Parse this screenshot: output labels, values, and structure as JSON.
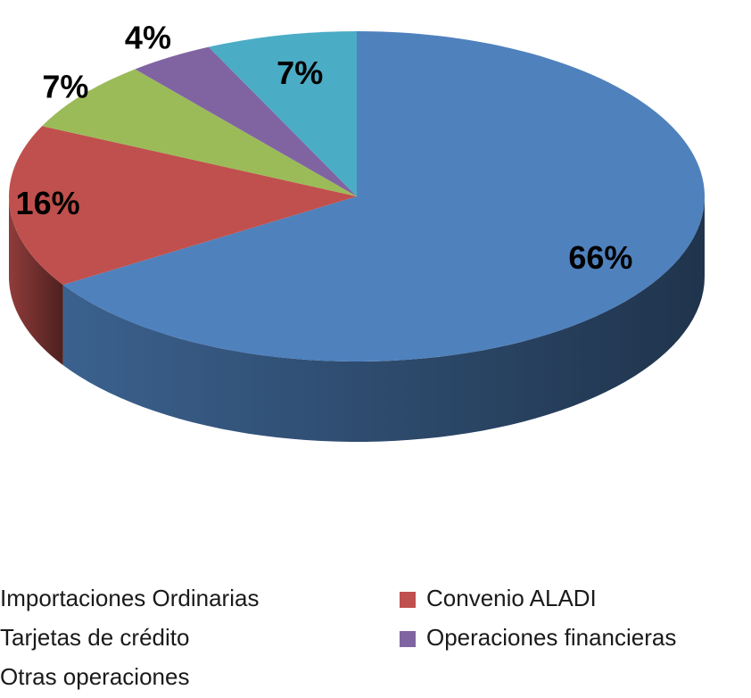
{
  "chart_data": {
    "type": "pie",
    "categories": [
      "Importaciones Ordinarias",
      "Convenio ALADI",
      "Tarjetas de crédito",
      "Operaciones financieras",
      "Otras operaciones"
    ],
    "values": [
      66,
      16,
      7,
      4,
      7
    ],
    "value_labels": [
      "66%",
      "16%",
      "7%",
      "4%",
      "7%"
    ],
    "colors": [
      "#4f81bd",
      "#c0504d",
      "#9bbb59",
      "#8064a2",
      "#4bacc6"
    ],
    "legend": "bottom"
  }
}
